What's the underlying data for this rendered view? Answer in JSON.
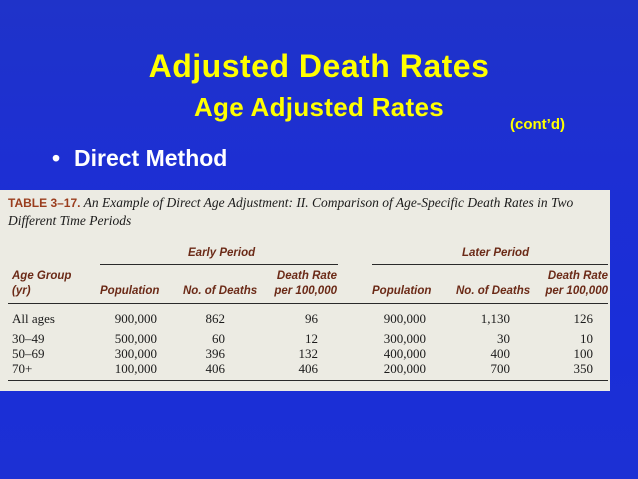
{
  "slide": {
    "title": "Adjusted Death Rates",
    "subtitle": "Age Adjusted Rates",
    "contd": "(cont’d)",
    "bullet_symbol": "•",
    "bullet_text": "Direct Method"
  },
  "table": {
    "label": "TABLE 3–17.",
    "caption": "An Example of Direct Age Adjustment: II. Comparison of Age-Specific Death Rates in Two Different Time Periods",
    "early_period": "Early Period",
    "later_period": "Later Period",
    "col_age_group": [
      "Age Group",
      "(yr)"
    ],
    "col_population": "Population",
    "col_deaths": "No. of Deaths",
    "col_rate": [
      "Death Rate",
      "per 100,000"
    ],
    "rows": [
      {
        "age": "All ages",
        "pop1": "900,000",
        "deaths1": "862",
        "rate1": "96",
        "pop2": "900,000",
        "deaths2": "1,130",
        "rate2": "126"
      },
      {
        "age": "30–49",
        "pop1": "500,000",
        "deaths1": "60",
        "rate1": "12",
        "pop2": "300,000",
        "deaths2": "30",
        "rate2": "10"
      },
      {
        "age": "50–69",
        "pop1": "300,000",
        "deaths1": "396",
        "rate1": "132",
        "pop2": "400,000",
        "deaths2": "400",
        "rate2": "100"
      },
      {
        "age": "70+",
        "pop1": "100,000",
        "deaths1": "406",
        "rate1": "406",
        "pop2": "200,000",
        "deaths2": "700",
        "rate2": "350"
      }
    ]
  }
}
